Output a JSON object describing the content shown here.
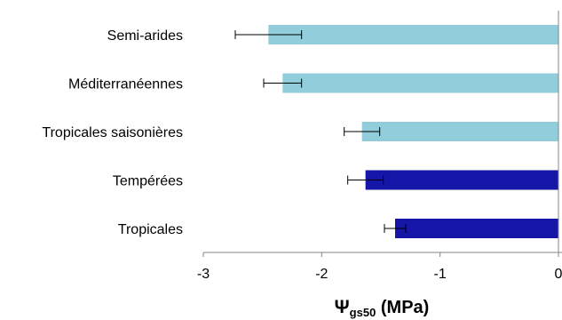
{
  "chart_data": {
    "type": "bar",
    "orientation": "horizontal",
    "categories": [
      "Semi-arides",
      "Méditerranéennes",
      "Tropicales saisonières",
      "Tempérées",
      "Tropicales"
    ],
    "values": [
      -2.45,
      -2.33,
      -1.66,
      -1.63,
      -1.38
    ],
    "error": [
      0.28,
      0.16,
      0.15,
      0.15,
      0.09
    ],
    "bar_colors": [
      "#92cddc",
      "#92cddc",
      "#92cddc",
      "#1515a8",
      "#1515a8"
    ],
    "xlim": [
      -3,
      0
    ],
    "xticks": [
      -3,
      -2,
      -1,
      0
    ],
    "x_tick_labels": [
      "-3",
      "-2",
      "-1",
      "0"
    ],
    "xlabel": {
      "symbol": "Ψ",
      "subscript": "gs50",
      "unit": " (MPa)"
    },
    "ylabel": "",
    "grid": false,
    "legend": "none"
  }
}
